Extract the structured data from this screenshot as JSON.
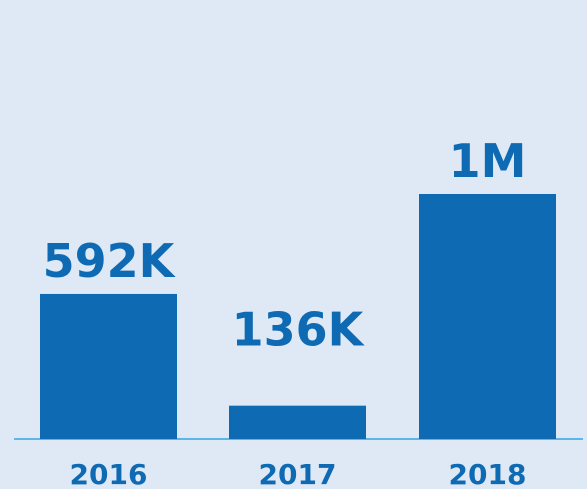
{
  "chart_data": {
    "type": "bar",
    "categories": [
      "2016",
      "2017",
      "2018"
    ],
    "values": [
      592000,
      136000,
      1000000
    ],
    "data_labels": [
      "592K",
      "136K",
      "1M"
    ],
    "title": "",
    "xlabel": "",
    "ylabel": "",
    "ylim": [
      0,
      1000000
    ],
    "grid": false,
    "colors": {
      "bar": "#0f6ab4",
      "label": "#0f6ab4",
      "baseline": "#5cb6ea",
      "background": "#dfe9f5"
    }
  }
}
